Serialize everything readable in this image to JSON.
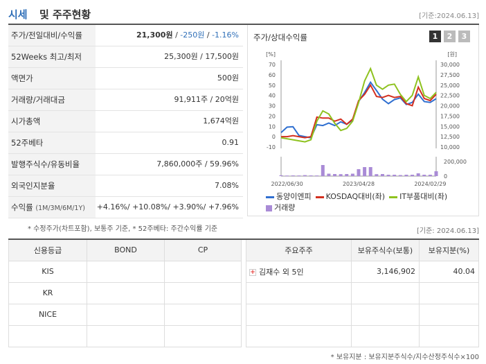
{
  "header": {
    "title_a": "시세",
    "title_b": "및 주주현황",
    "as_of": "[기준:2024.06.13]"
  },
  "quote": {
    "rows": [
      {
        "label": "주가/전일대비/수익률",
        "price": "21,300원",
        "sep1": " / ",
        "change": "-250원",
        "sep2": " / ",
        "rate": "-1.16%"
      },
      {
        "label": "52Weeks 최고/최저",
        "value": "25,300원 / 17,500원"
      },
      {
        "label": "액면가",
        "value": "500원"
      },
      {
        "label": "거래량/거래대금",
        "value": "91,911주 / 20억원"
      },
      {
        "label": "시가총액",
        "value": "1,674억원"
      },
      {
        "label": "52주베타",
        "value": "0.91"
      },
      {
        "label": "발행주식수/유동비율",
        "value": "7,860,000주 / 59.96%"
      },
      {
        "label": "외국인지분율",
        "value": "7.08%"
      },
      {
        "label": "수익률",
        "label_small": "(1M/3M/6M/1Y)",
        "r1": "+4.16%",
        "r2": "+10.08%",
        "r3": "+3.90%",
        "r4": "+7.96%"
      }
    ],
    "note": "* 수정주가(차트포함), 보통주 기준, * 52주베타: 주간수익률 기준"
  },
  "chart_panel": {
    "title": "주가/상대수익률",
    "buttons": [
      "1",
      "2",
      "3"
    ],
    "active_button": 0,
    "legend": [
      "동양이엔피",
      "KOSDAQ대비(좌)",
      "IT부품대비(좌)",
      "거래량"
    ],
    "colors": {
      "stock": "#2f6fd0",
      "kosdaq": "#d32f1f",
      "it": "#8ec21f",
      "volume": "#a98bd6"
    }
  },
  "chart_data": {
    "type": "line",
    "left_axis": {
      "unit": "[%]",
      "ticks": [
        "70",
        "60",
        "50",
        "40",
        "30",
        "20",
        "10",
        "0",
        "-10"
      ],
      "ylim": [
        -10,
        70
      ]
    },
    "right_axis": {
      "unit": "[원]",
      "ticks": [
        "30,000",
        "27,500",
        "25,000",
        "22,500",
        "20,000",
        "17,500",
        "15,000",
        "12,500",
        "10,000"
      ],
      "ylim": [
        10000,
        30000
      ]
    },
    "volume_axis": {
      "ticks": [
        "200,000",
        "0"
      ],
      "ylim": [
        0,
        300000
      ]
    },
    "x_labels": [
      "2022/06/30",
      "2023/04/28",
      "2024/02/29"
    ],
    "x_label_index": [
      1,
      13,
      25
    ],
    "series": [
      {
        "name": "동양이엔피",
        "axis": "right",
        "values": [
          13500,
          14800,
          14900,
          12800,
          12500,
          12200,
          15400,
          15200,
          15800,
          15200,
          16100,
          15500,
          16500,
          21000,
          23200,
          25700,
          23700,
          21600,
          20500,
          21500,
          21900,
          20300,
          20800,
          22800,
          21000,
          20800,
          21700
        ]
      },
      {
        "name": "KOSDAQ대비(좌)",
        "axis": "left",
        "values": [
          0,
          0,
          1,
          0,
          -1,
          0,
          19,
          18,
          18,
          15,
          17,
          12,
          17,
          35,
          41,
          50,
          39,
          38,
          40,
          38,
          39,
          32,
          30,
          48,
          37,
          35,
          41
        ]
      },
      {
        "name": "IT부품대비(좌)",
        "axis": "left",
        "values": [
          -1,
          -2,
          -3,
          -4,
          -5,
          -3,
          15,
          25,
          22,
          13,
          6,
          8,
          15,
          33,
          54,
          66,
          50,
          46,
          50,
          51,
          41,
          34,
          40,
          58,
          40,
          37,
          43
        ]
      },
      {
        "name": "거래량",
        "axis": "volume",
        "values": [
          12000,
          8000,
          10000,
          9000,
          14000,
          10000,
          9000,
          160000,
          35000,
          30000,
          28000,
          30000,
          35000,
          100000,
          130000,
          130000,
          28000,
          30000,
          20000,
          20000,
          15000,
          20000,
          20000,
          40000,
          20000,
          20000,
          70000
        ]
      }
    ]
  },
  "ratings": {
    "headers": [
      "신용등급",
      "BOND",
      "CP"
    ],
    "rows": [
      [
        "KIS",
        "",
        ""
      ],
      [
        "KR",
        "",
        ""
      ],
      [
        "NICE",
        "",
        ""
      ],
      [
        "",
        "",
        ""
      ]
    ]
  },
  "shareholders": {
    "as_of": "[기준: 2024.06.13]",
    "headers": [
      "주요주주",
      "보유주식수(보통)",
      "보유지분(%)"
    ],
    "rows": [
      [
        "김재수 외 5인",
        "3,146,902",
        "40.04"
      ],
      [
        "",
        "",
        ""
      ],
      [
        "",
        "",
        ""
      ],
      [
        "",
        "",
        ""
      ]
    ],
    "note": "* 보유지분 : 보유지분주식수/지수산정주식수×100"
  }
}
